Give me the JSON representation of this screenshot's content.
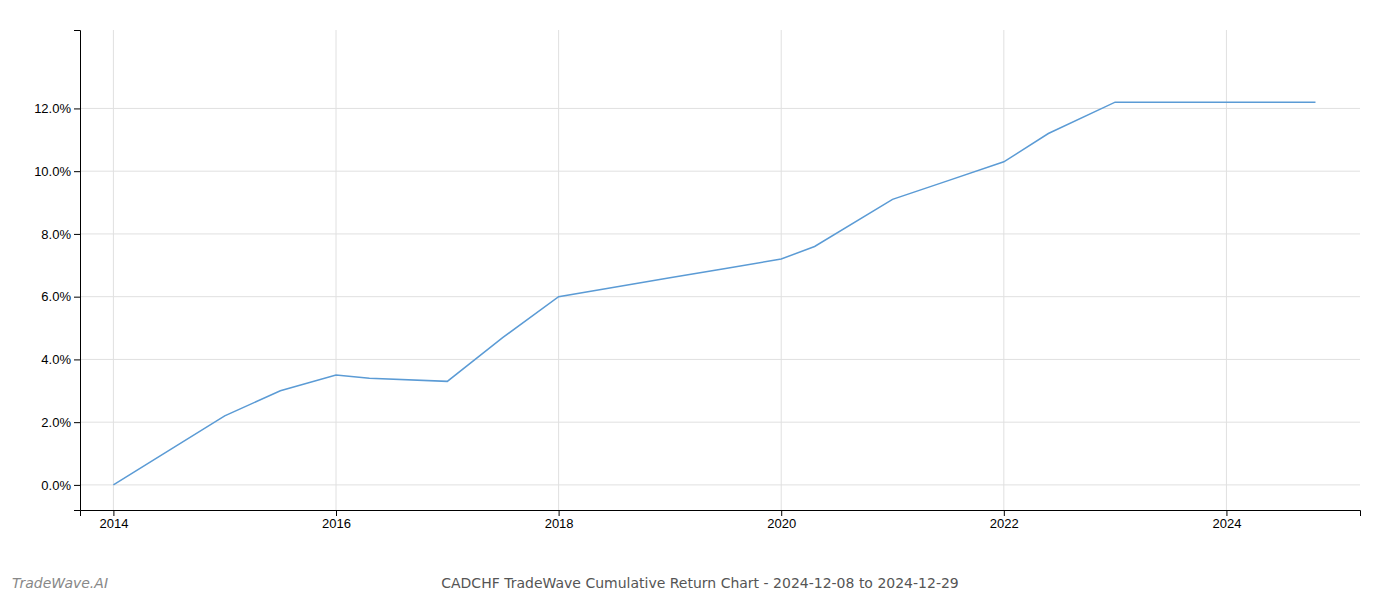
{
  "chart_data": {
    "type": "line",
    "title": "CADCHF TradeWave Cumulative Return Chart - 2024-12-08 to 2024-12-29",
    "annotations": [
      "TradeWave.AI"
    ],
    "x": [
      2014.0,
      2014.5,
      2015.0,
      2015.5,
      2016.0,
      2016.3,
      2017.0,
      2017.5,
      2018.0,
      2018.5,
      2019.0,
      2019.5,
      2020.0,
      2020.3,
      2021.0,
      2021.5,
      2022.0,
      2022.4,
      2023.0,
      2023.5,
      2024.0,
      2024.8
    ],
    "values": [
      0.0,
      1.1,
      2.2,
      3.0,
      3.5,
      3.4,
      3.3,
      4.7,
      6.0,
      6.3,
      6.6,
      6.9,
      7.2,
      7.6,
      9.1,
      9.7,
      10.3,
      11.2,
      12.2,
      12.2,
      12.2,
      12.2
    ],
    "color": "#5b9bd5",
    "xlim": [
      2013.7,
      2025.2
    ],
    "ylim": [
      -0.8,
      14.5
    ],
    "xticks": [
      2014,
      2016,
      2018,
      2020,
      2022,
      2024
    ],
    "yticks": [
      {
        "value": 0.0,
        "label": "0.0%"
      },
      {
        "value": 2.0,
        "label": "2.0%"
      },
      {
        "value": 4.0,
        "label": "4.0%"
      },
      {
        "value": 6.0,
        "label": "6.0%"
      },
      {
        "value": 8.0,
        "label": "8.0%"
      },
      {
        "value": 10.0,
        "label": "10.0%"
      },
      {
        "value": 12.0,
        "label": "12.0%"
      }
    ],
    "grid": true
  }
}
